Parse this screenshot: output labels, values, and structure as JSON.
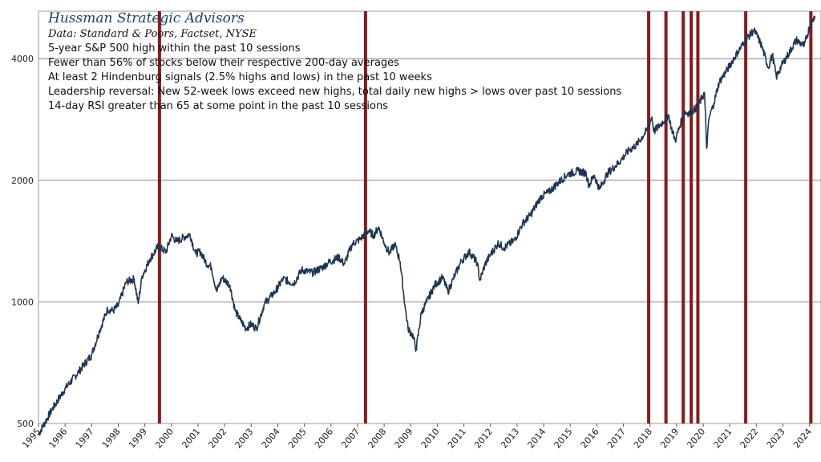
{
  "chart_data": {
    "type": "line",
    "title": "Hussman Strategic Advisors",
    "subtitle": "Data: Standard & Poors, Factset, NYSE",
    "annotations": [
      "5-year S&P 500 high within the past 10 sessions",
      "Fewer than 56% of stocks below their respective 200-day averages",
      "At least 2 Hindenburg signals (2.5% highs and lows) in the past 10 weeks",
      "Leadership reversal: New 52-week lows exceed new highs, total daily new highs > lows over past 10 sessions",
      "14-day RSI greater than 65 at some point in the past 10 sessions"
    ],
    "y_scale": "log",
    "ylim": [
      500,
      5100
    ],
    "xlim": [
      1995.0,
      2024.25
    ],
    "y_ticks": [
      500,
      1000,
      2000,
      4000
    ],
    "x_ticks": [
      "1995",
      "1996",
      "1997",
      "1998",
      "1999",
      "2000",
      "2001",
      "2002",
      "2003",
      "2004",
      "2005",
      "2006",
      "2007",
      "2008",
      "2009",
      "2010",
      "2011",
      "2012",
      "2013",
      "2014",
      "2015",
      "2016",
      "2017",
      "2018",
      "2019",
      "2020",
      "2021",
      "2022",
      "2023",
      "2024"
    ],
    "grid": "horizontal",
    "series": [
      {
        "color": "#1f3552",
        "x": [
          1995.0,
          1995.5,
          1996.0,
          1996.5,
          1997.0,
          1997.3,
          1997.6,
          1997.8,
          1998.0,
          1998.3,
          1998.6,
          1998.75,
          1998.9,
          1999.2,
          1999.5,
          1999.8,
          2000.0,
          2000.2,
          2000.5,
          2000.7,
          2000.9,
          2001.1,
          2001.3,
          2001.5,
          2001.7,
          2001.9,
          2002.2,
          2002.4,
          2002.6,
          2002.8,
          2003.0,
          2003.2,
          2003.5,
          2003.9,
          2004.2,
          2004.6,
          2004.9,
          2005.3,
          2005.7,
          2005.9,
          2006.3,
          2006.5,
          2006.8,
          2007.1,
          2007.4,
          2007.6,
          2007.8,
          2008.0,
          2008.2,
          2008.4,
          2008.6,
          2008.8,
          2008.9,
          2009.1,
          2009.2,
          2009.4,
          2009.6,
          2009.9,
          2010.2,
          2010.4,
          2010.6,
          2010.9,
          2011.2,
          2011.5,
          2011.6,
          2011.8,
          2012.0,
          2012.3,
          2012.5,
          2012.9,
          2013.2,
          2013.5,
          2013.9,
          2014.2,
          2014.5,
          2014.9,
          2015.3,
          2015.6,
          2015.7,
          2015.9,
          2016.1,
          2016.4,
          2016.7,
          2016.9,
          2017.2,
          2017.5,
          2017.9,
          2018.07,
          2018.15,
          2018.4,
          2018.7,
          2018.8,
          2018.95,
          2019.1,
          2019.3,
          2019.5,
          2019.8,
          2020.05,
          2020.13,
          2020.22,
          2020.4,
          2020.6,
          2020.9,
          2021.1,
          2021.3,
          2021.6,
          2021.9,
          2022.0,
          2022.2,
          2022.45,
          2022.6,
          2022.75,
          2022.95,
          2023.2,
          2023.5,
          2023.8,
          2024.0,
          2024.2
        ],
        "y": [
          470,
          540,
          610,
          670,
          740,
          850,
          960,
          950,
          980,
          1120,
          1140,
          990,
          1160,
          1280,
          1370,
          1330,
          1460,
          1410,
          1450,
          1470,
          1320,
          1330,
          1250,
          1220,
          1060,
          1150,
          1100,
          950,
          900,
          860,
          880,
          860,
          990,
          1060,
          1140,
          1110,
          1200,
          1180,
          1220,
          1250,
          1290,
          1240,
          1390,
          1430,
          1500,
          1460,
          1530,
          1400,
          1320,
          1390,
          1260,
          960,
          860,
          820,
          760,
          940,
          1000,
          1100,
          1150,
          1060,
          1140,
          1260,
          1330,
          1250,
          1130,
          1240,
          1310,
          1400,
          1360,
          1420,
          1560,
          1640,
          1820,
          1870,
          1960,
          2070,
          2110,
          2080,
          1940,
          2060,
          1900,
          2080,
          2170,
          2240,
          2370,
          2450,
          2670,
          2870,
          2640,
          2750,
          2900,
          2700,
          2510,
          2700,
          2950,
          2930,
          3050,
          3300,
          2400,
          2850,
          3100,
          3500,
          3750,
          3950,
          4150,
          4450,
          4700,
          4600,
          4300,
          3800,
          4100,
          3600,
          3850,
          4100,
          4450,
          4300,
          4800,
          5100
        ]
      }
    ],
    "signal_dates": [
      1999.55,
      2007.3,
      2017.95,
      2018.6,
      2019.25,
      2019.55,
      2019.8,
      2021.6,
      2024.05
    ],
    "signal_color": "#8b1a1a"
  }
}
